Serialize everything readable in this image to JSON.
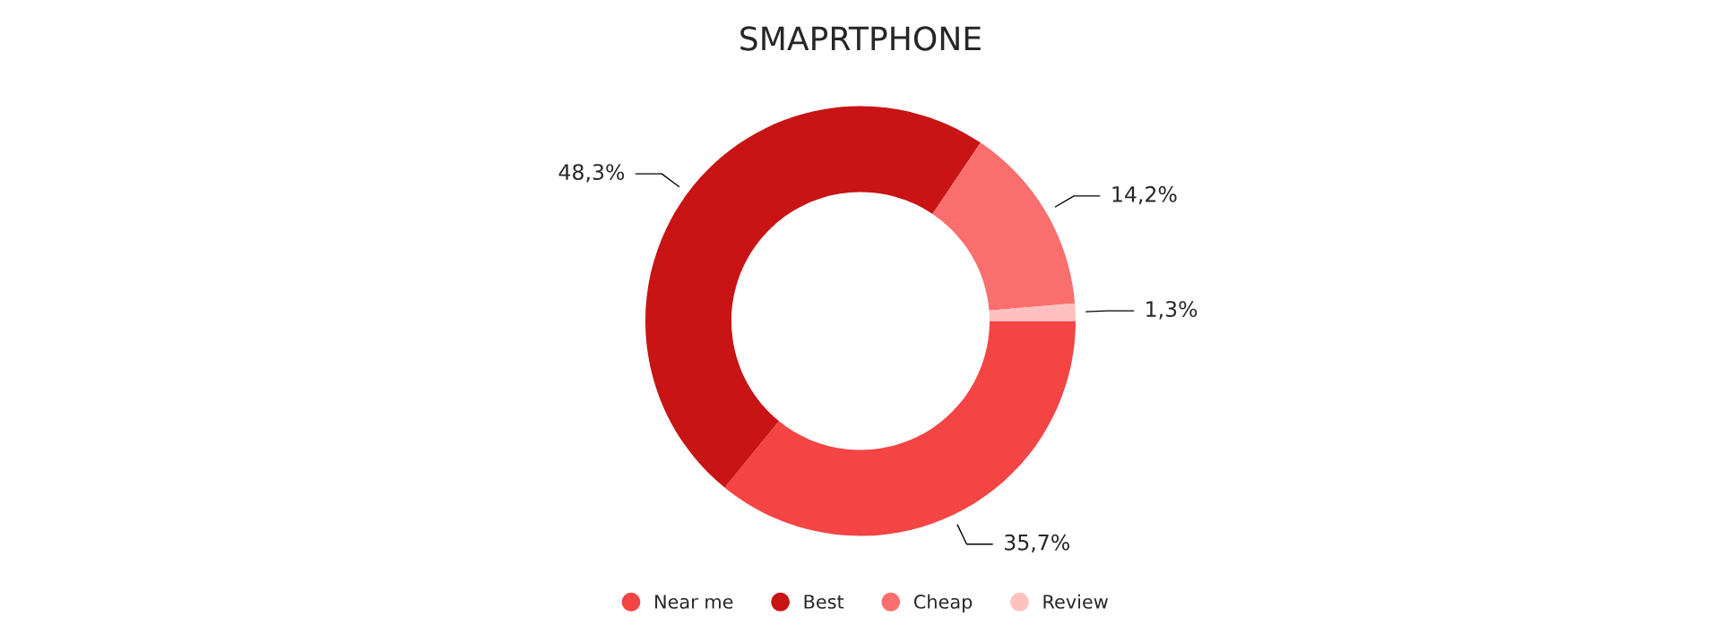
{
  "chart_data": {
    "type": "donut",
    "title": "SMAPRTPHONE",
    "categories": [
      "Near me",
      "Best",
      "Cheap",
      "Review"
    ],
    "values": [
      35.7,
      48.3,
      14.2,
      1.3
    ],
    "value_labels": [
      "35,7%",
      "48,3%",
      "14,2%",
      "1,3%"
    ],
    "colors": [
      "#f44444",
      "#c81414",
      "#fa6e6e",
      "#ffc0c0"
    ],
    "legend": "bottom"
  }
}
